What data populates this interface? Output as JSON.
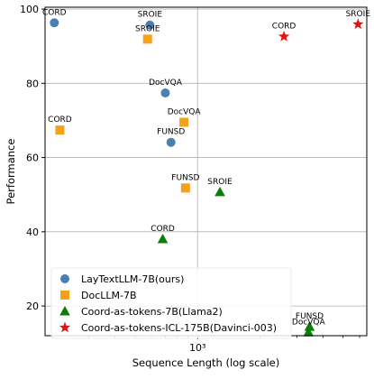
{
  "chart_data": {
    "type": "scatter",
    "xlabel": "Sequence Length (log scale)",
    "ylabel": "Performance",
    "x_scale": "log",
    "xlim": [
      185,
      6500
    ],
    "ylim": [
      12,
      100.5
    ],
    "x_ticks": [
      {
        "value": 1000,
        "label": "10³"
      }
    ],
    "y_ticks": [
      20,
      40,
      60,
      80,
      100
    ],
    "grid": true,
    "legend_position": "lower-left",
    "series": [
      {
        "name": "LayTextLLM-7B(ours)",
        "marker": "circle",
        "color": "#4a7fb3",
        "points": [
          {
            "label": "CORD",
            "x": 205,
            "y": 96.3
          },
          {
            "label": "SROIE",
            "x": 590,
            "y": 95.7
          },
          {
            "label": "DocVQA",
            "x": 700,
            "y": 77.4
          },
          {
            "label": "FUNSD",
            "x": 745,
            "y": 64.1
          }
        ]
      },
      {
        "name": "DocLLM-7B",
        "marker": "square",
        "color": "#f5a21b",
        "points": [
          {
            "label": "CORD",
            "x": 218,
            "y": 67.4
          },
          {
            "label": "SROIE",
            "x": 575,
            "y": 91.9
          },
          {
            "label": "DocVQA",
            "x": 860,
            "y": 69.5
          },
          {
            "label": "FUNSD",
            "x": 875,
            "y": 51.8
          }
        ]
      },
      {
        "name": "Coord-as-tokens-7B(Llama2)",
        "marker": "triangle",
        "color": "#0b7d0b",
        "points": [
          {
            "label": "CORD",
            "x": 680,
            "y": 38.0
          },
          {
            "label": "SROIE",
            "x": 1280,
            "y": 50.7
          },
          {
            "label": "FUNSD",
            "x": 3450,
            "y": 14.4
          },
          {
            "label": "DocVQA",
            "x": 3410,
            "y": 12.9
          }
        ]
      },
      {
        "name": "Coord-as-tokens-ICL-175B(Davinci-003)",
        "marker": "star",
        "color": "#e81010",
        "points": [
          {
            "label": "CORD",
            "x": 2600,
            "y": 92.6
          },
          {
            "label": "SROIE",
            "x": 5900,
            "y": 95.9
          }
        ]
      }
    ]
  }
}
